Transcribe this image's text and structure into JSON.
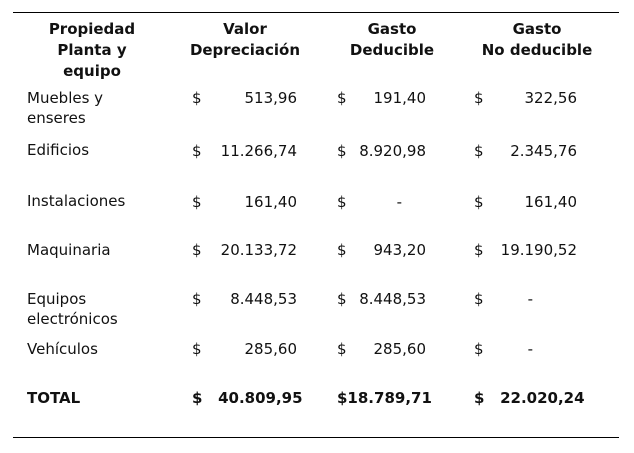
{
  "table": {
    "headers": [
      "Propiedad\nPlanta y\nequipo",
      "Valor\nDepreciación",
      "Gasto\nDeducible",
      "Gasto\nNo deducible"
    ],
    "currency_symbol": "$",
    "rows": [
      {
        "label": "Muebles y\nenseres",
        "valor": "513,96",
        "deducible": "191,40",
        "no_deducible": "322,56"
      },
      {
        "label": "Edificios",
        "valor": "11.266,74",
        "deducible": "8.920,98",
        "no_deducible": "2.345,76"
      },
      {
        "label": "Instalaciones",
        "valor": "161,40",
        "deducible": "-",
        "no_deducible": "161,40"
      },
      {
        "label": "Maquinaria",
        "valor": "20.133,72",
        "deducible": "943,20",
        "no_deducible": "19.190,52"
      },
      {
        "label": "Equipos\nelectrónicos",
        "valor": "8.448,53",
        "deducible": "8.448,53",
        "no_deducible": "-"
      },
      {
        "label": "Vehículos",
        "valor": "285,60",
        "deducible": "285,60",
        "no_deducible": "-"
      }
    ],
    "total": {
      "label": "TOTAL",
      "valor": "$   40.809,95",
      "deducible": "$18.789,71",
      "no_deducible": "$   22.020,24"
    }
  }
}
